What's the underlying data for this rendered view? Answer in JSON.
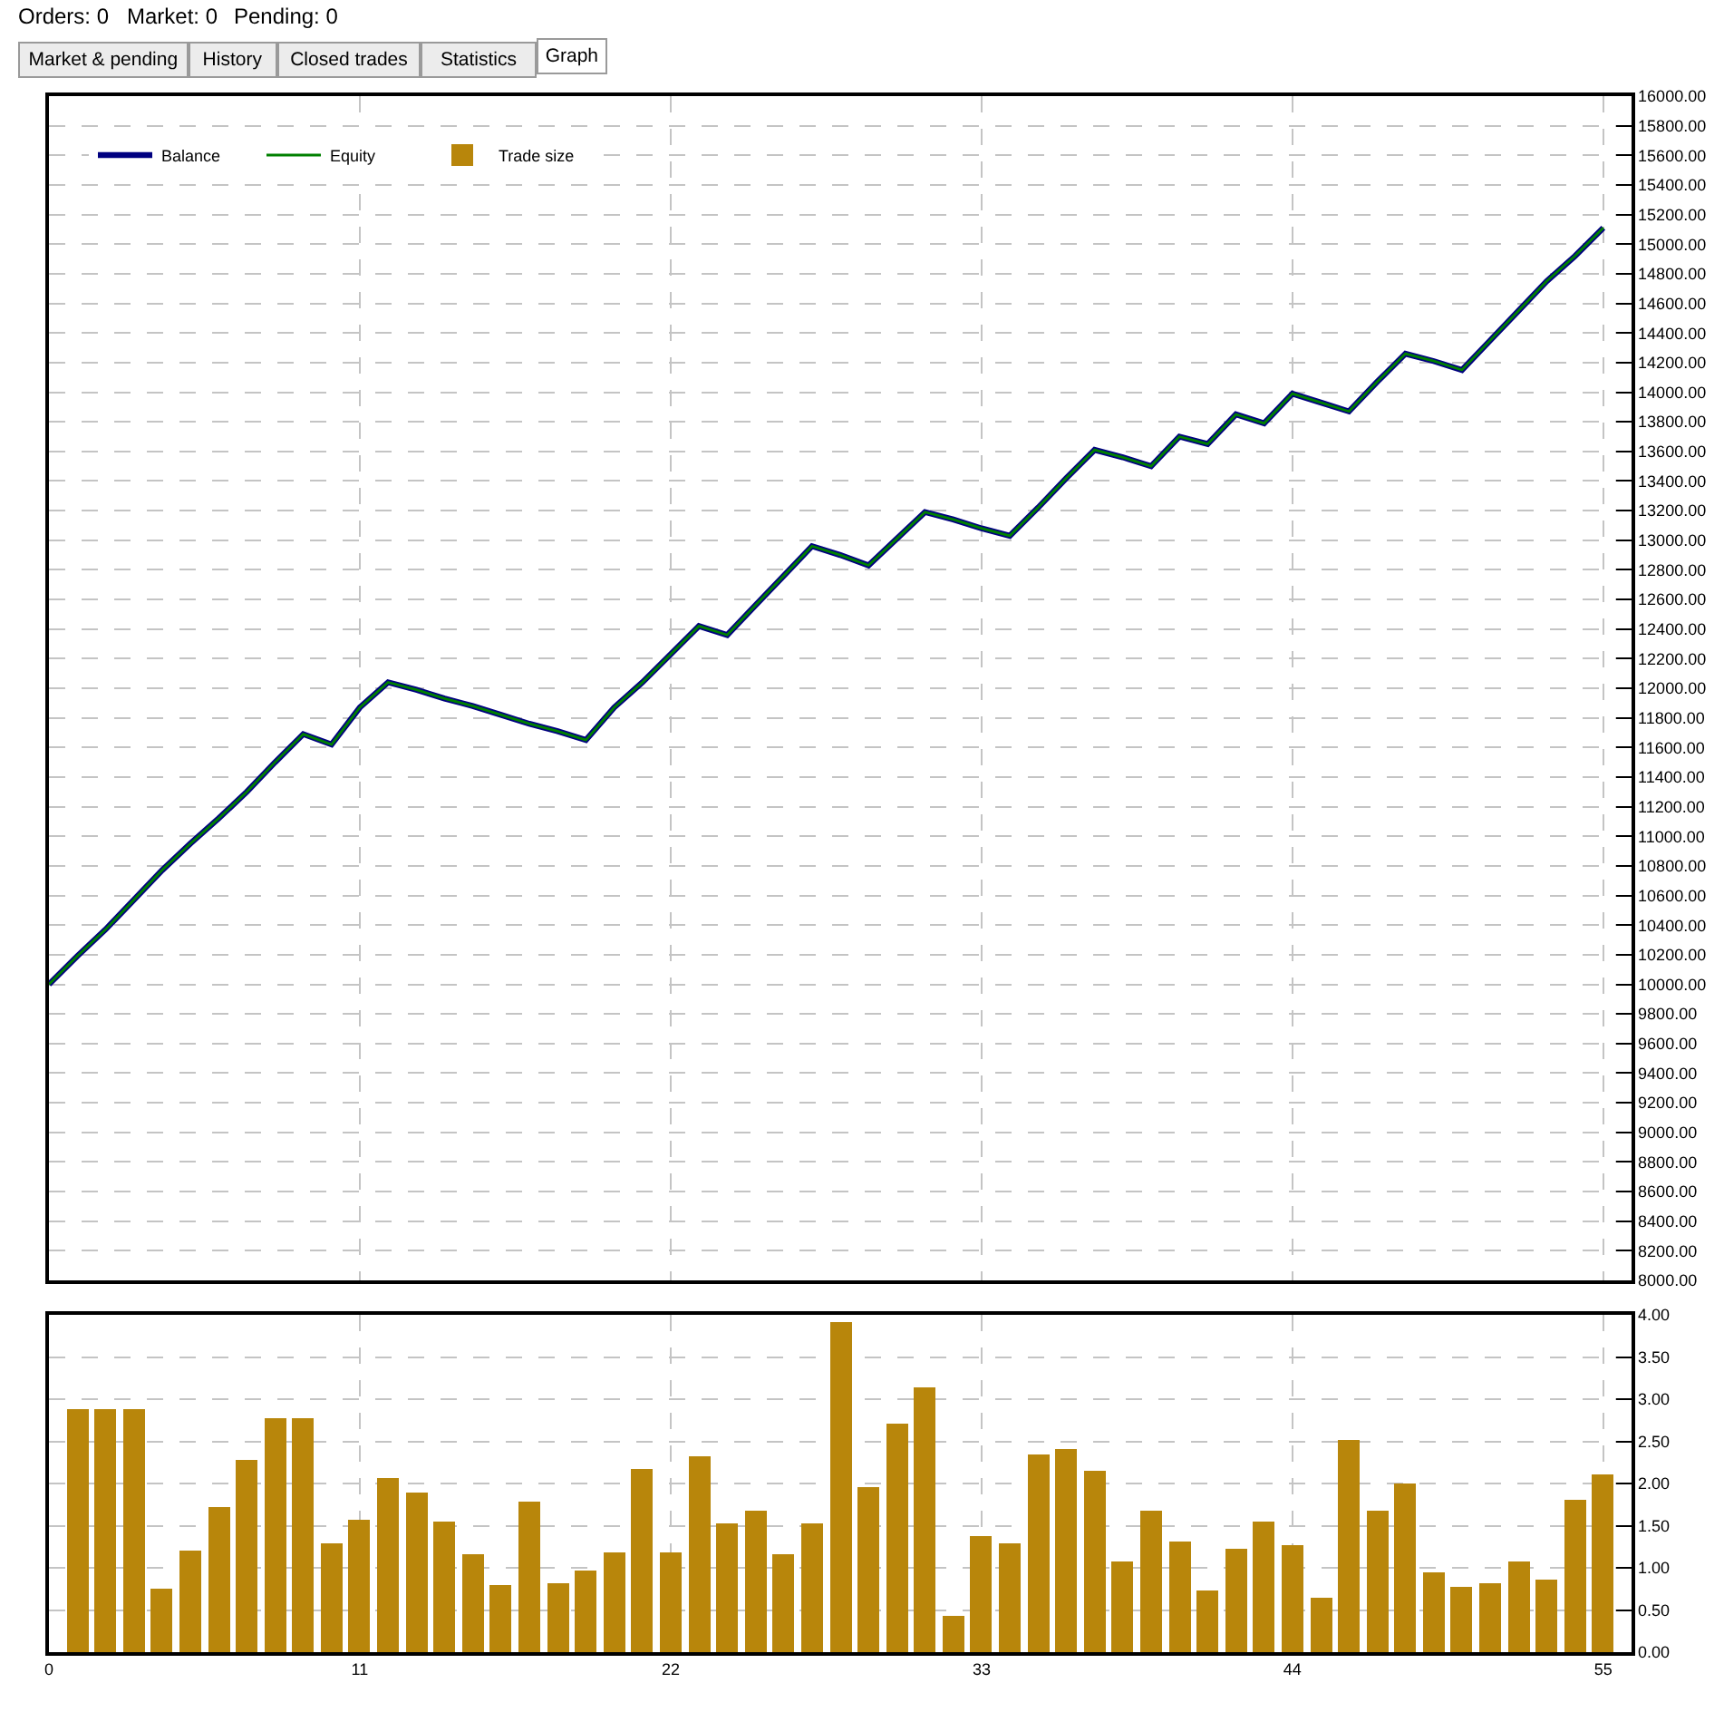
{
  "chart_data": [
    {
      "type": "line",
      "annotations": [
        "Orders: 0",
        "Market: 0",
        "Pending: 0",
        "Market & pending",
        "History",
        "Closed trades",
        "Statistics",
        "Graph"
      ],
      "x": [
        0,
        1,
        2,
        3,
        4,
        5,
        6,
        7,
        8,
        9,
        10,
        11,
        12,
        13,
        14,
        15,
        16,
        17,
        18,
        19,
        20,
        21,
        22,
        23,
        24,
        25,
        26,
        27,
        28,
        29,
        30,
        31,
        32,
        33,
        34,
        35,
        36,
        37,
        38,
        39,
        40,
        41,
        42,
        43,
        44,
        45,
        46,
        47,
        48,
        49,
        50,
        51,
        52,
        53,
        54,
        55
      ],
      "series": [
        {
          "name": "Balance",
          "color": "#000080",
          "values": [
            10000,
            10190,
            10370,
            10570,
            10770,
            10950,
            11120,
            11300,
            11500,
            11690,
            11620,
            11870,
            12040,
            11990,
            11930,
            11880,
            11820,
            11760,
            11710,
            11650,
            11870,
            12040,
            12230,
            12420,
            12360,
            12560,
            12760,
            12960,
            12900,
            12830,
            13010,
            13190,
            13140,
            13080,
            13030,
            13220,
            13420,
            13610,
            13560,
            13500,
            13700,
            13650,
            13850,
            13790,
            13990,
            13930,
            13870,
            14070,
            14260,
            14210,
            14150,
            14350,
            14550,
            14750,
            14920,
            15110
          ]
        },
        {
          "name": "Equity",
          "color": "#008000",
          "values": [
            10000,
            10190,
            10370,
            10570,
            10770,
            10950,
            11120,
            11300,
            11500,
            11690,
            11620,
            11870,
            12040,
            11990,
            11930,
            11880,
            11820,
            11760,
            11710,
            11650,
            11870,
            12040,
            12230,
            12420,
            12360,
            12560,
            12760,
            12960,
            12900,
            12830,
            13010,
            13190,
            13140,
            13080,
            13030,
            13220,
            13420,
            13610,
            13560,
            13500,
            13700,
            13650,
            13850,
            13790,
            13990,
            13930,
            13870,
            14070,
            14260,
            14210,
            14150,
            14350,
            14550,
            14750,
            14920,
            15110
          ]
        }
      ],
      "xlim": [
        0,
        56
      ],
      "xticks": [
        0,
        11,
        22,
        33,
        44,
        55
      ],
      "ylim": [
        8000,
        16000
      ],
      "yticks": [
        {
          "value": 8000,
          "label": "8000.00"
        },
        {
          "value": 8200,
          "label": "8200.00"
        },
        {
          "value": 8400,
          "label": "8400.00"
        },
        {
          "value": 8600,
          "label": "8600.00"
        },
        {
          "value": 8800,
          "label": "8800.00"
        },
        {
          "value": 9000,
          "label": "9000.00"
        },
        {
          "value": 9200,
          "label": "9200.00"
        },
        {
          "value": 9400,
          "label": "9400.00"
        },
        {
          "value": 9600,
          "label": "9600.00"
        },
        {
          "value": 9800,
          "label": "9800.00"
        },
        {
          "value": 10000,
          "label": "10000.00"
        },
        {
          "value": 10200,
          "label": "10200.00"
        },
        {
          "value": 10400,
          "label": "10400.00"
        },
        {
          "value": 10600,
          "label": "10600.00"
        },
        {
          "value": 10800,
          "label": "10800.00"
        },
        {
          "value": 11000,
          "label": "11000.00"
        },
        {
          "value": 11200,
          "label": "11200.00"
        },
        {
          "value": 11400,
          "label": "11400.00"
        },
        {
          "value": 11600,
          "label": "11600.00"
        },
        {
          "value": 11800,
          "label": "11800.00"
        },
        {
          "value": 12000,
          "label": "12000.00"
        },
        {
          "value": 12200,
          "label": "12200.00"
        },
        {
          "value": 12400,
          "label": "12400.00"
        },
        {
          "value": 12600,
          "label": "12600.00"
        },
        {
          "value": 12800,
          "label": "12800.00"
        },
        {
          "value": 13000,
          "label": "13000.00"
        },
        {
          "value": 13200,
          "label": "13200.00"
        },
        {
          "value": 13400,
          "label": "13400.00"
        },
        {
          "value": 13600,
          "label": "13600.00"
        },
        {
          "value": 13800,
          "label": "13800.00"
        },
        {
          "value": 14000,
          "label": "14000.00"
        },
        {
          "value": 14200,
          "label": "14200.00"
        },
        {
          "value": 14400,
          "label": "14400.00"
        },
        {
          "value": 14600,
          "label": "14600.00"
        },
        {
          "value": 14800,
          "label": "14800.00"
        },
        {
          "value": 15000,
          "label": "15000.00"
        },
        {
          "value": 15200,
          "label": "15200.00"
        },
        {
          "value": 15400,
          "label": "15400.00"
        },
        {
          "value": 15600,
          "label": "15600.00"
        },
        {
          "value": 15800,
          "label": "15800.00"
        },
        {
          "value": 16000,
          "label": "16000.00"
        }
      ],
      "grid": true,
      "legend": "top left",
      "tick_labels": "y"
    },
    {
      "type": "bar",
      "x": [
        1,
        2,
        3,
        4,
        5,
        6,
        7,
        8,
        9,
        10,
        11,
        12,
        13,
        14,
        15,
        16,
        17,
        18,
        19,
        20,
        21,
        22,
        23,
        24,
        25,
        26,
        27,
        28,
        29,
        30,
        31,
        32,
        33,
        34,
        35,
        36,
        37,
        38,
        39,
        40,
        41,
        42,
        43,
        44,
        45,
        46,
        47,
        48,
        49,
        50,
        51,
        52,
        53,
        54,
        55
      ],
      "series": [
        {
          "name": "Trade size",
          "color": "#b8860b",
          "values": [
            2.88,
            2.88,
            2.88,
            0.75,
            1.2,
            1.72,
            2.28,
            2.77,
            2.77,
            1.29,
            1.57,
            2.06,
            1.89,
            1.55,
            1.16,
            0.8,
            1.78,
            0.82,
            0.97,
            1.18,
            2.17,
            1.18,
            2.32,
            1.53,
            1.68,
            1.16,
            1.53,
            3.91,
            1.96,
            2.71,
            3.14,
            0.43,
            1.38,
            1.29,
            2.34,
            2.41,
            2.15,
            1.08,
            1.68,
            1.31,
            0.73,
            1.23,
            1.55,
            1.27,
            0.65,
            2.52,
            1.68,
            2.0,
            0.95,
            0.77,
            0.82,
            1.08,
            0.86,
            1.81,
            2.11
          ]
        }
      ],
      "xlim": [
        0,
        56
      ],
      "xticks": [
        0,
        11,
        22,
        33,
        44,
        55
      ],
      "ylim": [
        0,
        4
      ],
      "yticks": [
        {
          "value": 0,
          "label": "0.00"
        },
        {
          "value": 0.5,
          "label": "0.50"
        },
        {
          "value": 1,
          "label": "1.00"
        },
        {
          "value": 1.5,
          "label": "1.50"
        },
        {
          "value": 2,
          "label": "2.00"
        },
        {
          "value": 2.5,
          "label": "2.50"
        },
        {
          "value": 3,
          "label": "3.00"
        },
        {
          "value": 3.5,
          "label": "3.50"
        },
        {
          "value": 4,
          "label": "4.00"
        }
      ],
      "grid": true,
      "legend": "top left"
    }
  ]
}
